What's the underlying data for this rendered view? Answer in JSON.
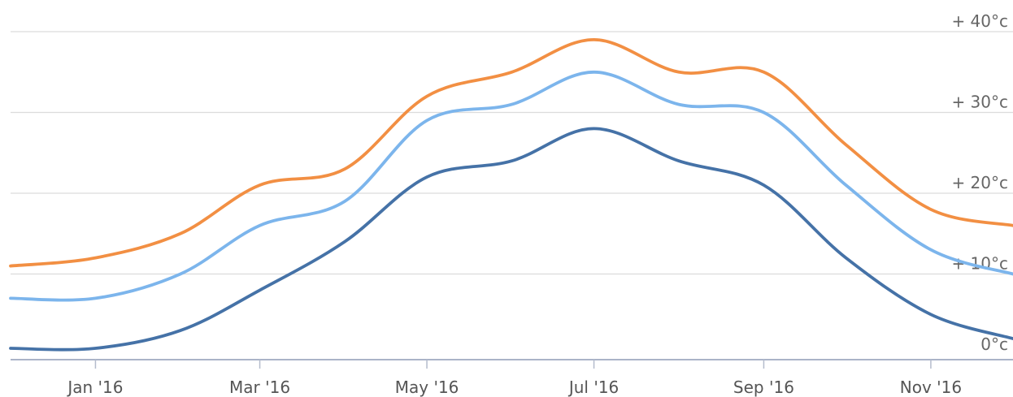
{
  "chart_data": {
    "type": "line",
    "title": "",
    "xlabel": "",
    "ylabel": "",
    "x": [
      "2015-12-01",
      "2016-01-01",
      "2016-02-01",
      "2016-03-01",
      "2016-04-01",
      "2016-05-01",
      "2016-06-01",
      "2016-07-01",
      "2016-08-01",
      "2016-09-01",
      "2016-10-01",
      "2016-11-01",
      "2016-12-01"
    ],
    "x_ticks": [
      {
        "date": "2016-01-01",
        "label": "Jan '16"
      },
      {
        "date": "2016-03-01",
        "label": "Mar '16"
      },
      {
        "date": "2016-05-01",
        "label": "May '16"
      },
      {
        "date": "2016-07-01",
        "label": "Jul '16"
      },
      {
        "date": "2016-09-01",
        "label": "Sep '16"
      },
      {
        "date": "2016-11-01",
        "label": "Nov '16"
      }
    ],
    "y_ticks": [
      {
        "value": 0,
        "label": "0°c"
      },
      {
        "value": 10,
        "label": "+ 10°c"
      },
      {
        "value": 20,
        "label": "+ 20°c"
      },
      {
        "value": 30,
        "label": "+ 30°c"
      },
      {
        "value": 40,
        "label": "+ 40°c"
      }
    ],
    "xlim": [
      "2015-12-01",
      "2016-12-01"
    ],
    "ylim": [
      0,
      40
    ],
    "grid": true,
    "legend": "none",
    "curve": "smooth",
    "series": [
      {
        "color": "#f28f43",
        "values": [
          11,
          12,
          15,
          21,
          23,
          32,
          35,
          39,
          35,
          35,
          26,
          18,
          16
        ]
      },
      {
        "color": "#7cb5ec",
        "values": [
          7,
          7,
          10,
          16,
          19,
          29,
          31,
          35,
          31,
          30,
          21,
          13,
          10
        ]
      },
      {
        "color": "#4572a7",
        "values": [
          0.8,
          0.8,
          3,
          8,
          14,
          22,
          24,
          28,
          24,
          21,
          12,
          5,
          2
        ]
      }
    ]
  }
}
